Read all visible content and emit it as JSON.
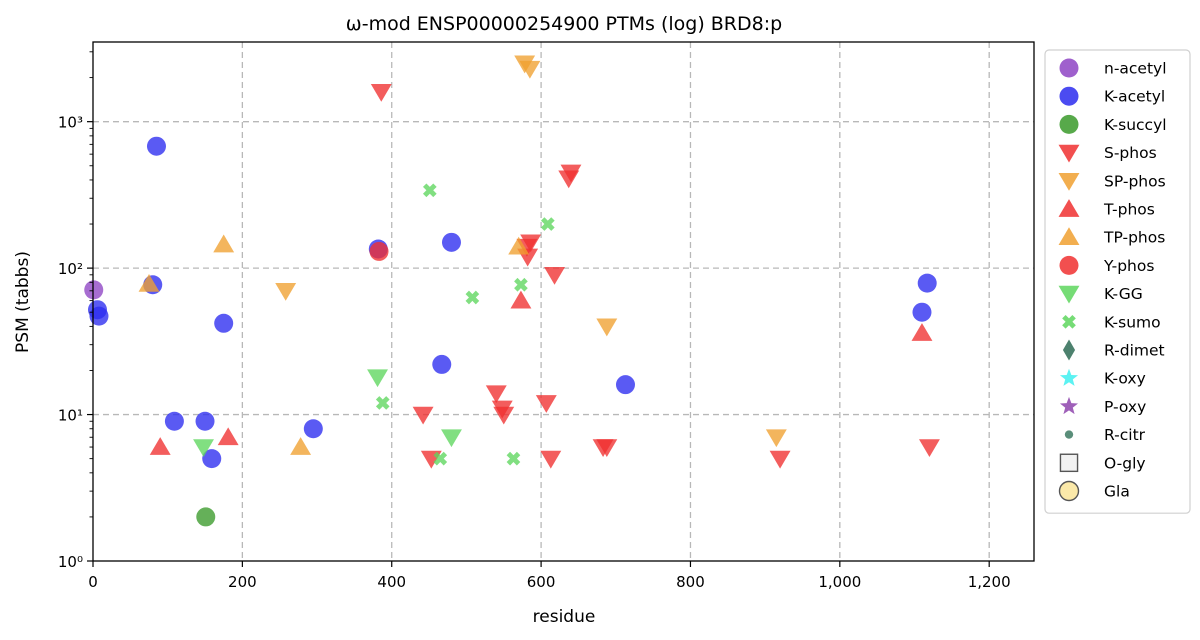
{
  "chart_data": {
    "type": "scatter",
    "title": "ω-mod ENSP00000254900 PTMs (log) BRD8:p",
    "xlabel": "residue",
    "ylabel": "PSM (tabbs)",
    "xlim": [
      0,
      1260
    ],
    "ylim": [
      1,
      3500
    ],
    "y_scale": "log",
    "grid": true,
    "legend_position": "right-outside",
    "x_ticks": [
      0,
      200,
      400,
      600,
      800,
      1000,
      1200
    ],
    "x_tick_labels": [
      "0",
      "200",
      "400",
      "600",
      "800",
      "1,000",
      "1,200"
    ],
    "y_ticks": [
      1,
      10,
      100,
      1000
    ],
    "y_tick_labels": [
      "10⁰",
      "10¹",
      "10²",
      "10³"
    ],
    "series": [
      {
        "name": "n-acetyl",
        "color": "#8e44c4",
        "marker": "circle",
        "points": [
          [
            1,
            71
          ]
        ]
      },
      {
        "name": "K-acetyl",
        "color": "#2b2bef",
        "marker": "circle",
        "points": [
          [
            6,
            52
          ],
          [
            8,
            47
          ],
          [
            80,
            77
          ],
          [
            85,
            680
          ],
          [
            109,
            9
          ],
          [
            150,
            9
          ],
          [
            159,
            5
          ],
          [
            175,
            42
          ],
          [
            295,
            8
          ],
          [
            382,
            135
          ],
          [
            467,
            22
          ],
          [
            480,
            150
          ],
          [
            713,
            16
          ],
          [
            1110,
            50
          ],
          [
            1117,
            79
          ]
        ]
      },
      {
        "name": "K-succyl",
        "color": "#3a9a2a",
        "marker": "circle",
        "points": [
          [
            151,
            2
          ]
        ]
      },
      {
        "name": "S-phos",
        "color": "#f03030",
        "marker": "triangle-down",
        "points": [
          [
            386,
            1600
          ],
          [
            442,
            10
          ],
          [
            453,
            5
          ],
          [
            540,
            14
          ],
          [
            548,
            11
          ],
          [
            550,
            10
          ],
          [
            581,
            140
          ],
          [
            586,
            150
          ],
          [
            582,
            120
          ],
          [
            607,
            12
          ],
          [
            613,
            5
          ],
          [
            618,
            90
          ],
          [
            637,
            410
          ],
          [
            640,
            450
          ],
          [
            683,
            6
          ],
          [
            688,
            6
          ],
          [
            920,
            5
          ],
          [
            1120,
            6
          ]
        ]
      },
      {
        "name": "SP-phos",
        "color": "#f0a030",
        "marker": "triangle-down",
        "points": [
          [
            578,
            2500
          ],
          [
            585,
            2300
          ],
          [
            258,
            70
          ],
          [
            688,
            40
          ],
          [
            915,
            7
          ]
        ]
      },
      {
        "name": "T-phos",
        "color": "#f03030",
        "marker": "triangle-up",
        "points": [
          [
            90,
            6
          ],
          [
            181,
            7
          ],
          [
            573,
            60
          ],
          [
            1110,
            36
          ]
        ]
      },
      {
        "name": "TP-phos",
        "color": "#f0a030",
        "marker": "triangle-up",
        "points": [
          [
            75,
            78
          ],
          [
            175,
            145
          ],
          [
            278,
            6
          ],
          [
            570,
            140
          ]
        ]
      },
      {
        "name": "Y-phos",
        "color": "#f03030",
        "marker": "circle",
        "points": [
          [
            383,
            130
          ]
        ]
      },
      {
        "name": "K-GG",
        "color": "#5ed65e",
        "marker": "triangle-down",
        "points": [
          [
            148,
            6
          ],
          [
            381,
            18
          ],
          [
            480,
            7
          ]
        ]
      },
      {
        "name": "K-sumo",
        "color": "#5ed65e",
        "marker": "x",
        "points": [
          [
            388,
            12
          ],
          [
            451,
            340
          ],
          [
            465,
            5
          ],
          [
            508,
            63
          ],
          [
            563,
            5
          ],
          [
            573,
            77
          ],
          [
            609,
            200
          ]
        ]
      },
      {
        "name": "R-dimet",
        "color": "#2e6b55",
        "marker": "diamond",
        "points": []
      },
      {
        "name": "K-oxy",
        "color": "#40f0f0",
        "marker": "star",
        "points": []
      },
      {
        "name": "P-oxy",
        "color": "#8e44ad",
        "marker": "star",
        "points": []
      },
      {
        "name": "R-citr",
        "color": "#3d7a63",
        "marker": "small-circle",
        "points": []
      },
      {
        "name": "O-gly",
        "color": "#f2f2f2",
        "marker": "square",
        "points": []
      },
      {
        "name": "Gla",
        "color": "#fbe9a9",
        "marker": "circle-outline",
        "points": []
      }
    ]
  }
}
